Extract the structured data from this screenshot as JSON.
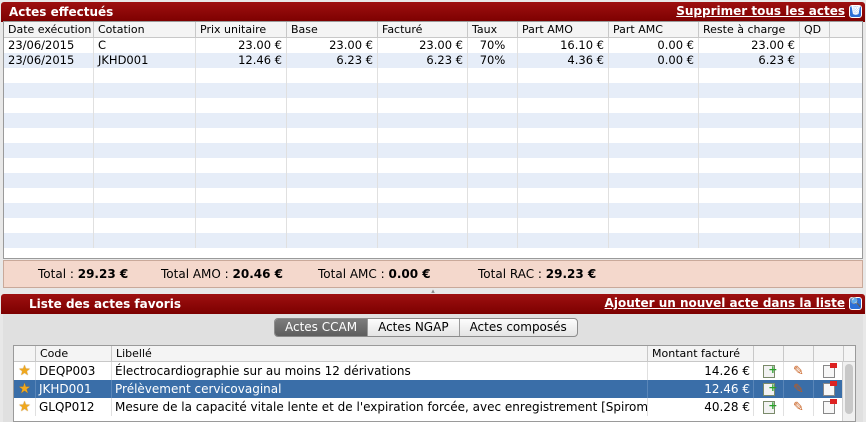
{
  "top_panel": {
    "title": "Actes effectués",
    "delete_all_link": "Supprimer tous les actes",
    "columns": [
      "Date exécution",
      "Cotation",
      "Prix unitaire",
      "Base",
      "Facturé",
      "Taux",
      "Part AMO",
      "Part AMC",
      "Reste à charge",
      "QD",
      ""
    ],
    "rows": [
      [
        "23/06/2015",
        "C",
        "23.00 €",
        "23.00 €",
        "23.00 €",
        "70%",
        "16.10 €",
        "0.00 €",
        "23.00 €",
        "",
        ""
      ],
      [
        "23/06/2015",
        "JKHD001",
        "12.46 €",
        "6.23 €",
        "6.23 €",
        "70%",
        "4.36 €",
        "0.00 €",
        "6.23 €",
        "",
        ""
      ]
    ]
  },
  "totals": {
    "total_label": "Total :",
    "total_value": "29.23 €",
    "amo_label": "Total AMO :",
    "amo_value": "20.46 €",
    "amc_label": "Total AMC :",
    "amc_value": "0.00 €",
    "rac_label": "Total RAC :",
    "rac_value": "29.23 €"
  },
  "bottom_panel": {
    "title": "Liste des actes favoris",
    "add_link": "Ajouter un nouvel acte dans la liste",
    "tabs": [
      {
        "label": "Actes CCAM",
        "active": true
      },
      {
        "label": "Actes NGAP",
        "active": false
      },
      {
        "label": "Actes composés",
        "active": false
      }
    ],
    "columns": [
      "",
      "Code",
      "Libellé",
      "Montant facturé",
      "",
      "",
      "",
      ""
    ],
    "rows": [
      {
        "code": "DEQP003",
        "label": "Électrocardiographie sur au moins 12 dérivations",
        "amount": "14.26 €",
        "selected": false
      },
      {
        "code": "JKHD001",
        "label": "Prélèvement cervicovaginal",
        "amount": "12.46 €",
        "selected": true
      },
      {
        "code": "GLQP012",
        "label": "Mesure de la capacité vitale lente et de l'expiration forcée, avec enregistrement [Spiromét...",
        "amount": "40.28 €",
        "selected": false
      }
    ]
  },
  "colors": {
    "header_red": "#8b0000",
    "selection_blue": "#3a6ea8",
    "totals_bg": "#f4d8cc",
    "stripe_blue": "#e6edf8"
  }
}
